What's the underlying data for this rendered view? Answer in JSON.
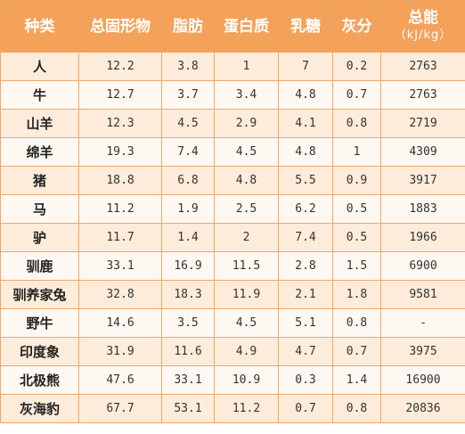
{
  "table": {
    "headers": {
      "species": "种类",
      "solids": "总固形物",
      "fat": "脂肪",
      "protein": "蛋白质",
      "lactose": "乳糖",
      "ash": "灰分",
      "energy": "总能",
      "energy_unit": "（kJ/kg）"
    },
    "rows": [
      {
        "species": "人",
        "solids": "12.2",
        "fat": "3.8",
        "protein": "1",
        "lactose": "7",
        "ash": "0.2",
        "energy": "2763"
      },
      {
        "species": "牛",
        "solids": "12.7",
        "fat": "3.7",
        "protein": "3.4",
        "lactose": "4.8",
        "ash": "0.7",
        "energy": "2763"
      },
      {
        "species": "山羊",
        "solids": "12.3",
        "fat": "4.5",
        "protein": "2.9",
        "lactose": "4.1",
        "ash": "0.8",
        "energy": "2719"
      },
      {
        "species": "绵羊",
        "solids": "19.3",
        "fat": "7.4",
        "protein": "4.5",
        "lactose": "4.8",
        "ash": "1",
        "energy": "4309"
      },
      {
        "species": "猪",
        "solids": "18.8",
        "fat": "6.8",
        "protein": "4.8",
        "lactose": "5.5",
        "ash": "0.9",
        "energy": "3917"
      },
      {
        "species": "马",
        "solids": "11.2",
        "fat": "1.9",
        "protein": "2.5",
        "lactose": "6.2",
        "ash": "0.5",
        "energy": "1883"
      },
      {
        "species": "驴",
        "solids": "11.7",
        "fat": "1.4",
        "protein": "2",
        "lactose": "7.4",
        "ash": "0.5",
        "energy": "1966"
      },
      {
        "species": "驯鹿",
        "solids": "33.1",
        "fat": "16.9",
        "protein": "11.5",
        "lactose": "2.8",
        "ash": "1.5",
        "energy": "6900"
      },
      {
        "species": "驯养家兔",
        "solids": "32.8",
        "fat": "18.3",
        "protein": "11.9",
        "lactose": "2.1",
        "ash": "1.8",
        "energy": "9581"
      },
      {
        "species": "野牛",
        "solids": "14.6",
        "fat": "3.5",
        "protein": "4.5",
        "lactose": "5.1",
        "ash": "0.8",
        "energy": "-"
      },
      {
        "species": "印度象",
        "solids": "31.9",
        "fat": "11.6",
        "protein": "4.9",
        "lactose": "4.7",
        "ash": "0.7",
        "energy": "3975"
      },
      {
        "species": "北极熊",
        "solids": "47.6",
        "fat": "33.1",
        "protein": "10.9",
        "lactose": "0.3",
        "ash": "1.4",
        "energy": "16900"
      },
      {
        "species": "灰海豹",
        "solids": "67.7",
        "fat": "53.1",
        "protein": "11.2",
        "lactose": "0.7",
        "ash": "0.8",
        "energy": "20836"
      }
    ]
  }
}
